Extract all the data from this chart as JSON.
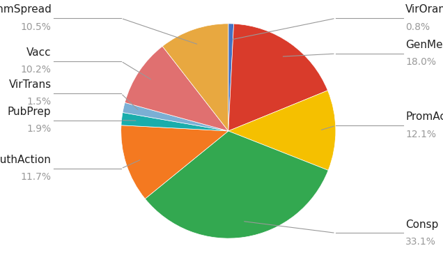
{
  "labels": [
    "VirOran",
    "GenMedAdv",
    "PromAct",
    "Consp",
    "PubAuthAction",
    "PubPrep",
    "VirTrans",
    "Vacc",
    "CommSpread"
  ],
  "values": [
    0.8,
    18.0,
    12.1,
    33.1,
    11.7,
    1.9,
    1.5,
    10.2,
    10.5
  ],
  "colors": [
    "#4472C4",
    "#D93B2B",
    "#F5C000",
    "#33A850",
    "#F47920",
    "#1AADAC",
    "#7BAFD4",
    "#E07070",
    "#E8A840"
  ],
  "background_color": "#ffffff",
  "label_name_fontsize": 11,
  "label_pct_fontsize": 10,
  "label_name_color": "#222222",
  "label_pct_color": "#999999",
  "line_color": "#999999",
  "right_labels": [
    {
      "name": "VirOran",
      "pct": "0.8%",
      "idx": 0
    },
    {
      "name": "GenMedAdv",
      "pct": "18.0%",
      "idx": 1
    },
    {
      "name": "PromAct",
      "pct": "12.1%",
      "idx": 2
    },
    {
      "name": "Consp",
      "pct": "33.1%",
      "idx": 3
    }
  ],
  "left_labels": [
    {
      "name": "CommSpread",
      "pct": "10.5%",
      "idx": 8
    },
    {
      "name": "Vacc",
      "pct": "10.2%",
      "idx": 7
    },
    {
      "name": "VirTrans",
      "pct": "1.5%",
      "idx": 6
    },
    {
      "name": "PubPrep",
      "pct": "1.9%",
      "idx": 5
    },
    {
      "name": "PubAuthAction",
      "pct": "11.7%",
      "idx": 4
    }
  ]
}
